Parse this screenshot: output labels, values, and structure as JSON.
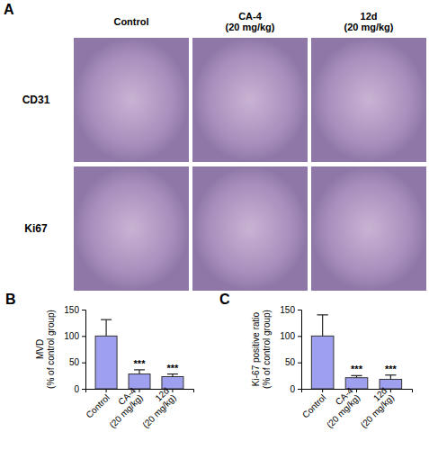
{
  "image_panel": {
    "panel_label": "A",
    "columns": [
      "Control",
      "CA-4 (20 mg/kg)",
      "12d (20 mg/kg)"
    ],
    "rows": [
      "CD31",
      "Ki67"
    ]
  },
  "chart_data": [
    {
      "type": "bar",
      "panel_label": "B",
      "y_label": "MVD (% of control group)",
      "categories": [
        "Control",
        "CA-4 (20 mg/kg)",
        "12d (20 mg/kg)"
      ],
      "values": [
        100,
        28,
        23
      ],
      "errors": [
        31,
        8,
        5
      ],
      "significance": [
        null,
        "***",
        "***"
      ],
      "color": "#9f9ff0",
      "ylim": [
        0,
        150
      ],
      "yticks": [
        0,
        50,
        100,
        150
      ]
    },
    {
      "type": "bar",
      "panel_label": "C",
      "y_label": "Ki-67 positive ratio (% of control group)",
      "categories": [
        "Control",
        "CA-4 (20 mg/kg)",
        "12d (20 mg/kg)"
      ],
      "values": [
        100,
        21,
        18
      ],
      "errors": [
        40,
        4,
        8
      ],
      "significance": [
        null,
        "***",
        "***"
      ],
      "color": "#9f9ff0",
      "ylim": [
        0,
        150
      ],
      "yticks": [
        0,
        50,
        100,
        150
      ]
    }
  ]
}
